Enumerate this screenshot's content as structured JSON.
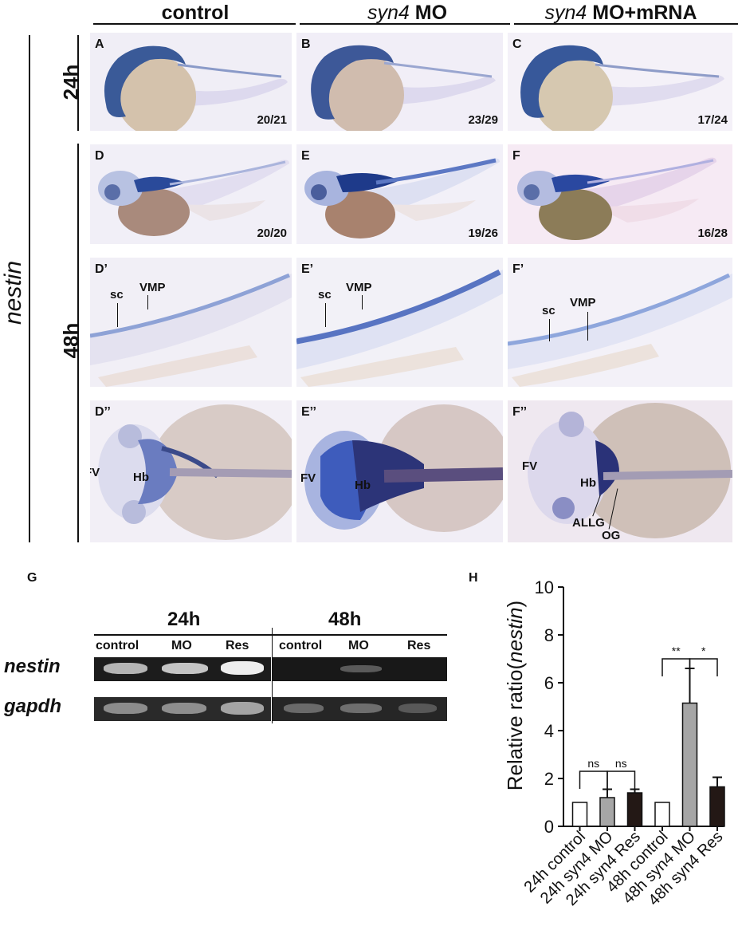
{
  "columns": {
    "control": "control",
    "mo_gene": "syn4",
    "mo_suffix": " MO",
    "rescue_gene": "syn4",
    "rescue_suffix": " MO+mRNA"
  },
  "rows": {
    "gene": "nestin",
    "t24": "24h",
    "t48": "48h"
  },
  "panels": {
    "A": {
      "letter": "A",
      "count": "20/21"
    },
    "B": {
      "letter": "B",
      "count": "23/29"
    },
    "C": {
      "letter": "C",
      "count": "17/24"
    },
    "D": {
      "letter": "D",
      "count": "20/20"
    },
    "E": {
      "letter": "E",
      "count": "19/26"
    },
    "F": {
      "letter": "F",
      "count": "16/28"
    },
    "D1": {
      "letter": "D’"
    },
    "E1": {
      "letter": "E’"
    },
    "F1": {
      "letter": "F’"
    },
    "D2": {
      "letter": "D’’"
    },
    "E2": {
      "letter": "E’’"
    },
    "F2": {
      "letter": "F’’"
    }
  },
  "annotations": {
    "sc": "sc",
    "vmp": "VMP",
    "fv": "FV",
    "hb": "Hb",
    "allg": "ALLG",
    "og": "OG"
  },
  "gel": {
    "panel_letter": "G",
    "group_24": "24h",
    "group_48": "48h",
    "lanes_24": [
      "control",
      "MO",
      "Res"
    ],
    "lanes_48": [
      "control",
      "MO",
      "Res"
    ],
    "genes": [
      "nestin",
      "gapdh"
    ]
  },
  "chart_panel_letter": "H",
  "chart_data": {
    "type": "bar",
    "categories": [
      "24h control",
      "24h syn4 MO",
      "24h syn4 Res",
      "48h control",
      "48h syn4 MO",
      "48h syn4 Res"
    ],
    "values": [
      1.0,
      1.2,
      1.4,
      1.0,
      5.15,
      1.65
    ],
    "errors": [
      0,
      0.35,
      0.15,
      0,
      1.45,
      0.4
    ],
    "bar_colors": [
      "#ffffff",
      "#a6a6a6",
      "#231815",
      "#ffffff",
      "#a6a6a6",
      "#231815"
    ],
    "ylabel_prefix": "Relative ratio(",
    "ylabel_gene": "nestin",
    "ylabel_suffix": ")",
    "ylim": [
      0,
      10
    ],
    "yticks": [
      "0",
      "2",
      "4",
      "6",
      "8",
      "10"
    ],
    "significance": [
      {
        "from": 0,
        "to": 1,
        "label": "ns"
      },
      {
        "from": 1,
        "to": 2,
        "label": "ns"
      },
      {
        "from": 3,
        "to": 4,
        "label": "**"
      },
      {
        "from": 4,
        "to": 5,
        "label": "*"
      }
    ]
  }
}
